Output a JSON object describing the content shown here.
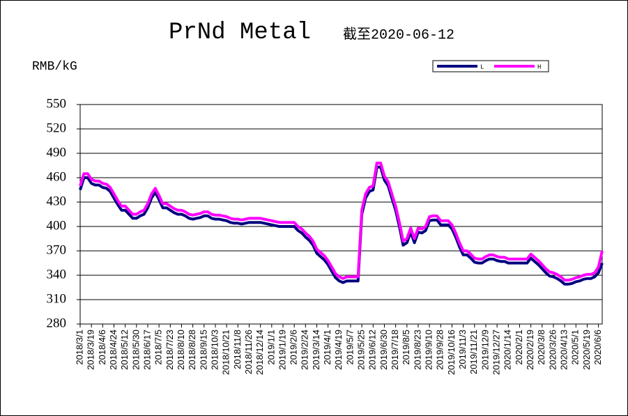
{
  "chart_data": {
    "type": "line",
    "title": "PrNd Metal",
    "subtitle": "截至2020-06-12",
    "y_label": "RMB/kG",
    "ylim": [
      280,
      550
    ],
    "yticks": [
      280,
      310,
      340,
      370,
      400,
      430,
      460,
      490,
      520,
      550
    ],
    "grid": true,
    "legend": "top-right",
    "categories": [
      "2018/3/1",
      null,
      null,
      "2018/3/19",
      null,
      null,
      "2018/4/6",
      null,
      null,
      "2018/4/24",
      null,
      null,
      "2018/5/12",
      null,
      null,
      "2018/5/30",
      null,
      null,
      "2018/6/17",
      null,
      null,
      "2018/7/5",
      null,
      null,
      "2018/7/23",
      null,
      null,
      "2018/8/10",
      null,
      null,
      "2018/8/28",
      null,
      null,
      "2018/9/15",
      null,
      null,
      "2018/10/3",
      null,
      null,
      "2018/10/21",
      null,
      null,
      "2018/11/8",
      null,
      null,
      "2018/11/26",
      null,
      null,
      "2018/12/14",
      null,
      null,
      "2019/1/1",
      null,
      null,
      "2019/1/19",
      null,
      null,
      "2019/2/6",
      null,
      null,
      "2019/2/24",
      null,
      null,
      "2019/3/14",
      null,
      null,
      "2019/4/1",
      null,
      null,
      "2019/4/19",
      null,
      null,
      "2019/5/7",
      null,
      null,
      "2019/5/25",
      null,
      null,
      "2019/6/12",
      null,
      null,
      "2019/6/30",
      null,
      null,
      "2019/7/18",
      null,
      null,
      "2019/8/5",
      null,
      null,
      "2019/8/23",
      null,
      null,
      "2019/9/10",
      null,
      null,
      "2019/9/28",
      null,
      null,
      "2019/10/16",
      null,
      null,
      "2019/11/3",
      null,
      null,
      "2019/11/21",
      null,
      null,
      "2019/12/9",
      null,
      null,
      "2019/12/27",
      null,
      null,
      "2020/1/14",
      null,
      null,
      "2020/2/1",
      null,
      null,
      "2020/2/19",
      null,
      null,
      "2020/3/8",
      null,
      null,
      "2020/3/26",
      null,
      null,
      "2020/4/13",
      null,
      null,
      "2020/5/1",
      null,
      null,
      "2020/5/19",
      null,
      null,
      "2020/6/6",
      null
    ],
    "series": [
      {
        "name": "L",
        "color": "#000080",
        "values": [
          445,
          460,
          460,
          453,
          451,
          451,
          448,
          447,
          443,
          435,
          427,
          420,
          420,
          415,
          410,
          410,
          413,
          415,
          423,
          435,
          442,
          433,
          423,
          423,
          420,
          417,
          415,
          415,
          413,
          410,
          409,
          410,
          411,
          413,
          413,
          410,
          409,
          409,
          408,
          407,
          405,
          404,
          404,
          403,
          404,
          405,
          405,
          405,
          405,
          404,
          403,
          402,
          401,
          400,
          400,
          400,
          400,
          400,
          395,
          392,
          387,
          383,
          377,
          367,
          363,
          359,
          353,
          345,
          337,
          333,
          331,
          333,
          333,
          333,
          333,
          415,
          435,
          443,
          445,
          473,
          473,
          457,
          450,
          435,
          420,
          400,
          377,
          380,
          393,
          380,
          393,
          392,
          395,
          407,
          408,
          408,
          402,
          402,
          402,
          397,
          387,
          375,
          365,
          365,
          361,
          356,
          355,
          355,
          358,
          360,
          360,
          358,
          357,
          357,
          355,
          355,
          355,
          355,
          355,
          355,
          361,
          357,
          353,
          348,
          343,
          339,
          338,
          336,
          333,
          329,
          329,
          330,
          332,
          333,
          335,
          336,
          336,
          338,
          343,
          355
        ]
      },
      {
        "name": "H",
        "color": "#ff00ff",
        "values": [
          450,
          465,
          465,
          458,
          456,
          456,
          453,
          452,
          448,
          440,
          432,
          425,
          425,
          420,
          415,
          415,
          418,
          420,
          428,
          440,
          447,
          438,
          428,
          428,
          425,
          422,
          420,
          420,
          418,
          415,
          414,
          415,
          416,
          418,
          418,
          415,
          414,
          414,
          413,
          412,
          410,
          409,
          409,
          408,
          409,
          410,
          410,
          410,
          410,
          409,
          408,
          407,
          406,
          405,
          405,
          405,
          405,
          405,
          400,
          397,
          392,
          388,
          382,
          372,
          368,
          364,
          358,
          350,
          342,
          338,
          336,
          338,
          338,
          338,
          338,
          420,
          440,
          448,
          450,
          478,
          478,
          462,
          455,
          440,
          425,
          405,
          382,
          385,
          398,
          385,
          398,
          397,
          400,
          412,
          413,
          413,
          407,
          407,
          407,
          402,
          392,
          380,
          370,
          370,
          366,
          361,
          360,
          360,
          363,
          365,
          365,
          363,
          362,
          362,
          360,
          360,
          360,
          360,
          360,
          360,
          366,
          362,
          358,
          353,
          348,
          344,
          343,
          341,
          338,
          334,
          334,
          335,
          337,
          338,
          340,
          341,
          341,
          343,
          350,
          370
        ]
      }
    ]
  }
}
